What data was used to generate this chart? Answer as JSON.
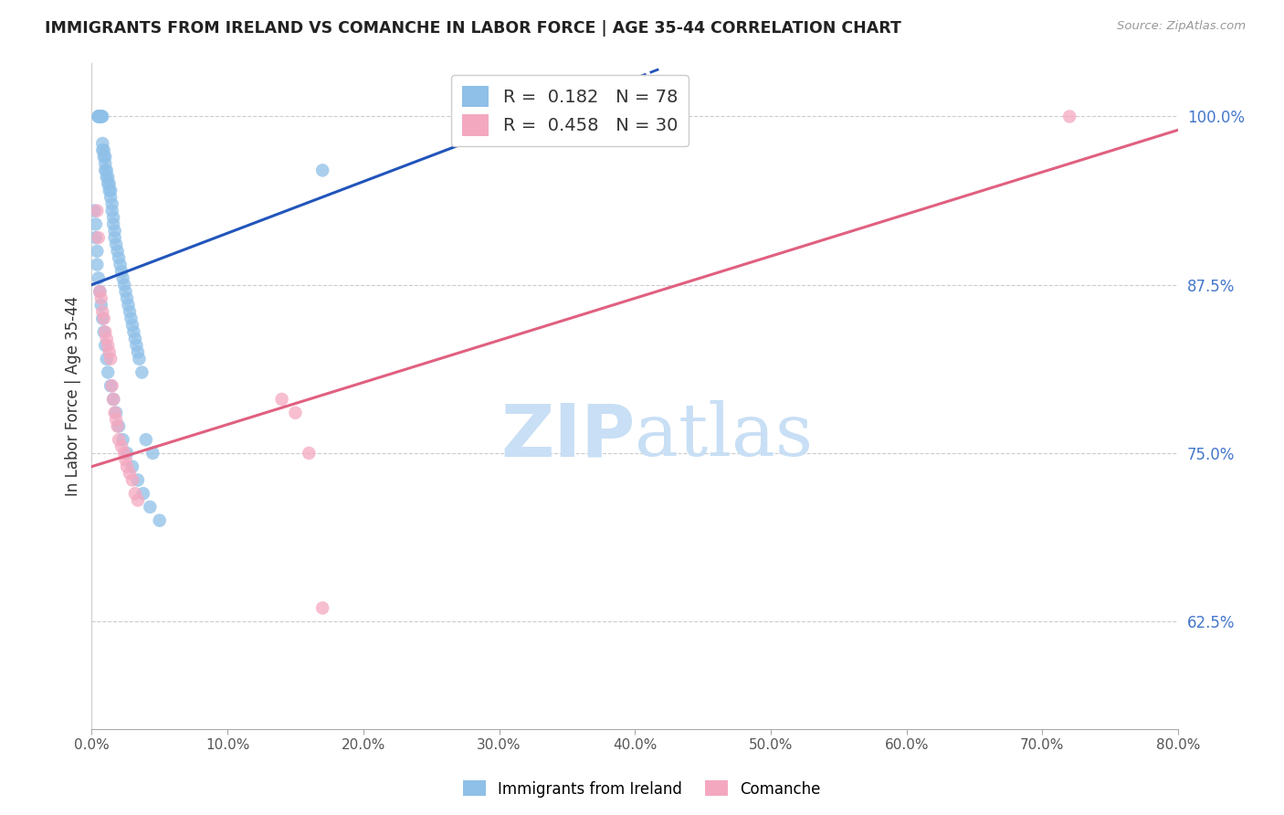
{
  "title": "IMMIGRANTS FROM IRELAND VS COMANCHE IN LABOR FORCE | AGE 35-44 CORRELATION CHART",
  "source_text": "Source: ZipAtlas.com",
  "ylabel": "In Labor Force | Age 35-44",
  "xlabel_ticks": [
    "0.0%",
    "10.0%",
    "20.0%",
    "30.0%",
    "40.0%",
    "50.0%",
    "60.0%",
    "70.0%",
    "80.0%"
  ],
  "xlabel_vals": [
    0.0,
    0.1,
    0.2,
    0.3,
    0.4,
    0.5,
    0.6,
    0.7,
    0.8
  ],
  "ytick_vals": [
    0.625,
    0.75,
    0.875,
    1.0
  ],
  "ytick_labels": [
    "62.5%",
    "75.0%",
    "87.5%",
    "100.0%"
  ],
  "xlim": [
    0.0,
    0.8
  ],
  "ylim": [
    0.545,
    1.04
  ],
  "ireland_R": 0.182,
  "ireland_N": 78,
  "comanche_R": 0.458,
  "comanche_N": 30,
  "ireland_color": "#8ec0e8",
  "comanche_color": "#f4a8c0",
  "ireland_line_color": "#2255bb",
  "comanche_line_color": "#e06080",
  "watermark_zip": "ZIP",
  "watermark_atlas": "atlas",
  "watermark_color_zip": "#c8dff5",
  "watermark_color_atlas": "#c8dff5",
  "ireland_x": [
    0.005,
    0.005,
    0.005,
    0.006,
    0.006,
    0.006,
    0.007,
    0.007,
    0.007,
    0.008,
    0.008,
    0.008,
    0.009,
    0.009,
    0.01,
    0.01,
    0.01,
    0.011,
    0.011,
    0.012,
    0.012,
    0.013,
    0.013,
    0.014,
    0.014,
    0.015,
    0.015,
    0.016,
    0.016,
    0.017,
    0.017,
    0.018,
    0.019,
    0.02,
    0.021,
    0.022,
    0.023,
    0.024,
    0.025,
    0.026,
    0.027,
    0.028,
    0.029,
    0.03,
    0.031,
    0.032,
    0.033,
    0.034,
    0.035,
    0.037,
    0.002,
    0.003,
    0.003,
    0.004,
    0.004,
    0.005,
    0.006,
    0.007,
    0.008,
    0.009,
    0.01,
    0.011,
    0.012,
    0.014,
    0.016,
    0.018,
    0.02,
    0.023,
    0.026,
    0.03,
    0.034,
    0.038,
    0.043,
    0.05,
    0.17,
    0.27,
    0.04,
    0.045
  ],
  "ireland_y": [
    1.0,
    1.0,
    1.0,
    1.0,
    1.0,
    1.0,
    1.0,
    1.0,
    1.0,
    1.0,
    0.98,
    0.975,
    0.975,
    0.97,
    0.97,
    0.965,
    0.96,
    0.96,
    0.955,
    0.955,
    0.95,
    0.95,
    0.945,
    0.945,
    0.94,
    0.935,
    0.93,
    0.925,
    0.92,
    0.915,
    0.91,
    0.905,
    0.9,
    0.895,
    0.89,
    0.885,
    0.88,
    0.875,
    0.87,
    0.865,
    0.86,
    0.855,
    0.85,
    0.845,
    0.84,
    0.835,
    0.83,
    0.825,
    0.82,
    0.81,
    0.93,
    0.92,
    0.91,
    0.9,
    0.89,
    0.88,
    0.87,
    0.86,
    0.85,
    0.84,
    0.83,
    0.82,
    0.81,
    0.8,
    0.79,
    0.78,
    0.77,
    0.76,
    0.75,
    0.74,
    0.73,
    0.72,
    0.71,
    0.7,
    0.96,
    0.985,
    0.76,
    0.75
  ],
  "comanche_x": [
    0.004,
    0.005,
    0.006,
    0.007,
    0.008,
    0.009,
    0.01,
    0.011,
    0.012,
    0.013,
    0.014,
    0.015,
    0.016,
    0.017,
    0.018,
    0.019,
    0.02,
    0.022,
    0.024,
    0.025,
    0.026,
    0.028,
    0.03,
    0.032,
    0.034,
    0.14,
    0.15,
    0.16,
    0.17,
    0.72
  ],
  "comanche_y": [
    0.93,
    0.91,
    0.87,
    0.865,
    0.855,
    0.85,
    0.84,
    0.835,
    0.83,
    0.825,
    0.82,
    0.8,
    0.79,
    0.78,
    0.775,
    0.77,
    0.76,
    0.755,
    0.75,
    0.745,
    0.74,
    0.735,
    0.73,
    0.72,
    0.715,
    0.79,
    0.78,
    0.75,
    0.635,
    1.0
  ],
  "ireland_line_x0": 0.0,
  "ireland_line_x1": 0.3,
  "ireland_line_y0": 0.875,
  "ireland_line_y1": 0.99,
  "ireland_line_xdash0": 0.3,
  "ireland_line_xdash1": 0.42,
  "comanche_line_x0": 0.0,
  "comanche_line_x1": 0.8,
  "comanche_line_y0": 0.74,
  "comanche_line_y1": 0.99
}
